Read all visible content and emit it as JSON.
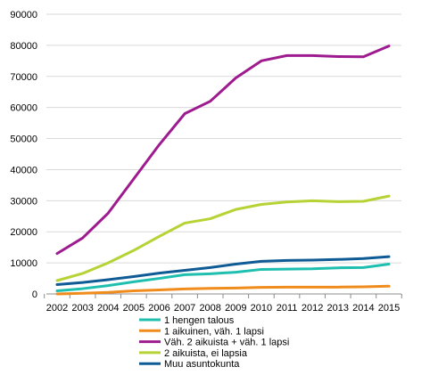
{
  "chart_data": {
    "type": "line",
    "title": "",
    "xlabel": "",
    "ylabel": "",
    "x": [
      2002,
      2003,
      2004,
      2005,
      2006,
      2007,
      2008,
      2009,
      2010,
      2011,
      2012,
      2013,
      2014,
      2015
    ],
    "ylim": [
      0,
      90000
    ],
    "yticks": [
      0,
      10000,
      20000,
      30000,
      40000,
      50000,
      60000,
      70000,
      80000,
      90000
    ],
    "ytick_labels": [
      "0",
      "10000",
      "20000",
      "30000",
      "40000",
      "50000",
      "60000",
      "70000",
      "80000",
      "90000"
    ],
    "xtick_labels": [
      "2002",
      "2003",
      "2004",
      "2005",
      "2006",
      "2007",
      "2008",
      "2009",
      "2010",
      "2011",
      "2012",
      "2013",
      "2014",
      "2015"
    ],
    "grid": "horizontal",
    "legend_position": "bottom",
    "series": [
      {
        "name": "1 hengen talous",
        "color": "#1fbfb0",
        "values": [
          1000,
          1700,
          2700,
          3900,
          5000,
          6200,
          6500,
          7000,
          7900,
          8000,
          8100,
          8400,
          8500,
          9600
        ]
      },
      {
        "name": "1 aikuinen, väh. 1 lapsi",
        "color": "#f08c1c",
        "values": [
          0,
          200,
          500,
          1000,
          1300,
          1600,
          1800,
          1900,
          2100,
          2200,
          2200,
          2200,
          2300,
          2500
        ]
      },
      {
        "name": "Väh. 2 aikuista + väh. 1 lapsi",
        "color": "#9e1b8f",
        "values": [
          13000,
          18000,
          26000,
          37000,
          48000,
          58000,
          62000,
          69500,
          75000,
          76700,
          76700,
          76400,
          76300,
          79800
        ]
      },
      {
        "name": "2 aikuista, ei lapsia",
        "color": "#b5d334",
        "values": [
          4300,
          6600,
          10000,
          14000,
          18500,
          22800,
          24200,
          27200,
          28800,
          29600,
          30000,
          29700,
          29800,
          31500
        ]
      },
      {
        "name": "Muu asuntokunta",
        "color": "#0f5b96",
        "values": [
          3000,
          3700,
          4600,
          5600,
          6700,
          7600,
          8500,
          9600,
          10500,
          10800,
          10900,
          11100,
          11400,
          12000
        ]
      }
    ]
  }
}
